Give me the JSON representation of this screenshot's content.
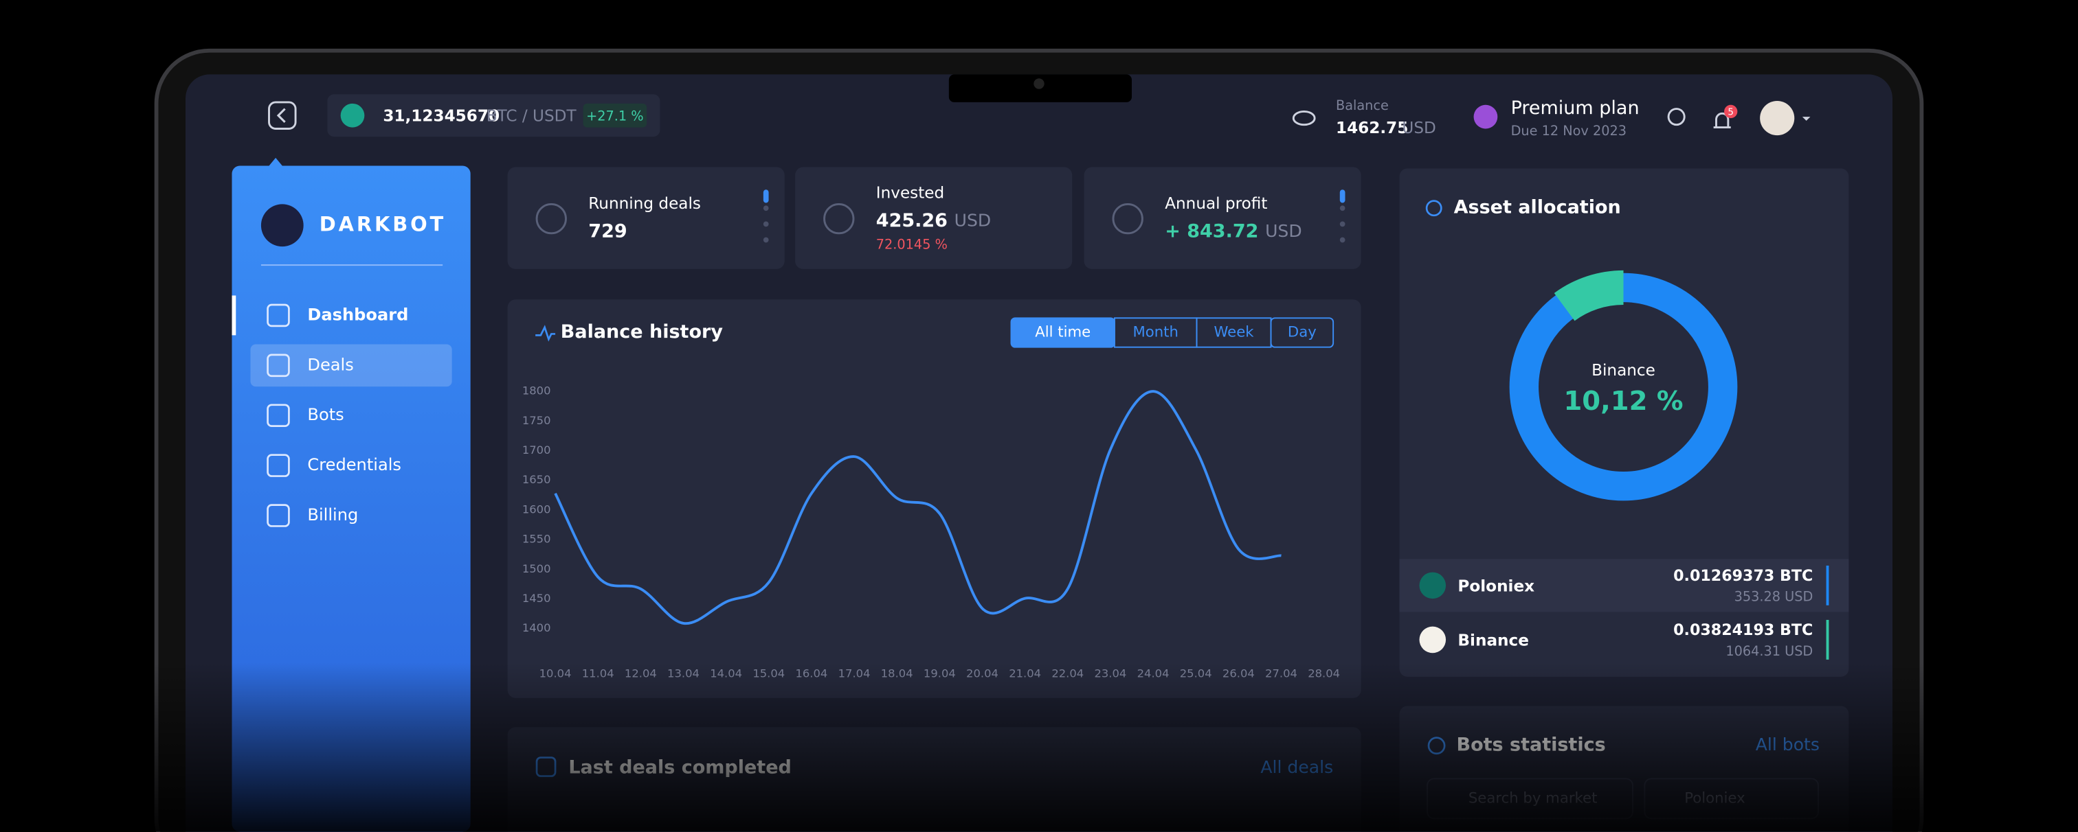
{
  "topbar": {
    "ticker": {
      "amount": "31,12345670",
      "pair": "BTC / USDT",
      "change": "+27.1 %"
    },
    "balance": {
      "label": "Balance",
      "amount": "1462.75",
      "currency": "USD"
    },
    "plan": {
      "name": "Premium plan",
      "due": "Due 12 Nov 2023"
    },
    "notifications": "5"
  },
  "sidebar": {
    "logo": "DARKBOT",
    "menu": [
      "Dashboard",
      "Deals",
      "Bots",
      "Credentials",
      "Billing"
    ],
    "active": 1
  },
  "stats": [
    {
      "label": "Running deals",
      "value": "729"
    },
    {
      "label": "Invested",
      "value": "425.26",
      "currency": "USD",
      "change": "72.0145 %"
    },
    {
      "label": "Annual profit",
      "value": "+ 843.72",
      "currency": "USD"
    }
  ],
  "chart_data": {
    "type": "line",
    "title": "Balance history",
    "ranges": [
      "All time",
      "Month",
      "Week",
      "Day"
    ],
    "active_range": 0,
    "categories": [
      "10.04",
      "11.04",
      "12.04",
      "13.04",
      "14.04",
      "15.04",
      "16.04",
      "17.04",
      "18.04",
      "19.04",
      "20.04",
      "21.04",
      "22.04",
      "23.04",
      "24.04",
      "25.04",
      "26.04",
      "27.04",
      "28.04"
    ],
    "values": [
      1628,
      1487,
      1467,
      1409,
      1445,
      1478,
      1628,
      1690,
      1620,
      1594,
      1434,
      1451,
      1467,
      1702,
      1800,
      1702,
      1534,
      1523,
      null
    ],
    "color": "#3b8df5",
    "ylim": [
      1350,
      1812
    ],
    "yticks": [
      1400,
      1450,
      1500,
      1550,
      1600,
      1650,
      1700,
      1750,
      1800
    ]
  },
  "assets": {
    "title": "Asset allocation",
    "donut": {
      "label": "Binance",
      "value": 10.12,
      "value_label": "10,12 %",
      "color": "#34c9a5",
      "track": "#1e88f5"
    },
    "rows": [
      {
        "name": "Poloniex",
        "btc": "0.01269373 BTC",
        "usd": "353.28 USD",
        "color": "#1e88f5"
      },
      {
        "name": "Binance",
        "btc": "0.03824193 BTC",
        "usd": "1064.31 USD",
        "color": "#34c9a5"
      }
    ]
  },
  "bottom": {
    "deals": {
      "title": "Last deals completed",
      "link": "All deals"
    },
    "bots": {
      "title": "Bots statistics",
      "link": "All bots",
      "search": "Search by market",
      "exchange": "Poloniex"
    }
  }
}
